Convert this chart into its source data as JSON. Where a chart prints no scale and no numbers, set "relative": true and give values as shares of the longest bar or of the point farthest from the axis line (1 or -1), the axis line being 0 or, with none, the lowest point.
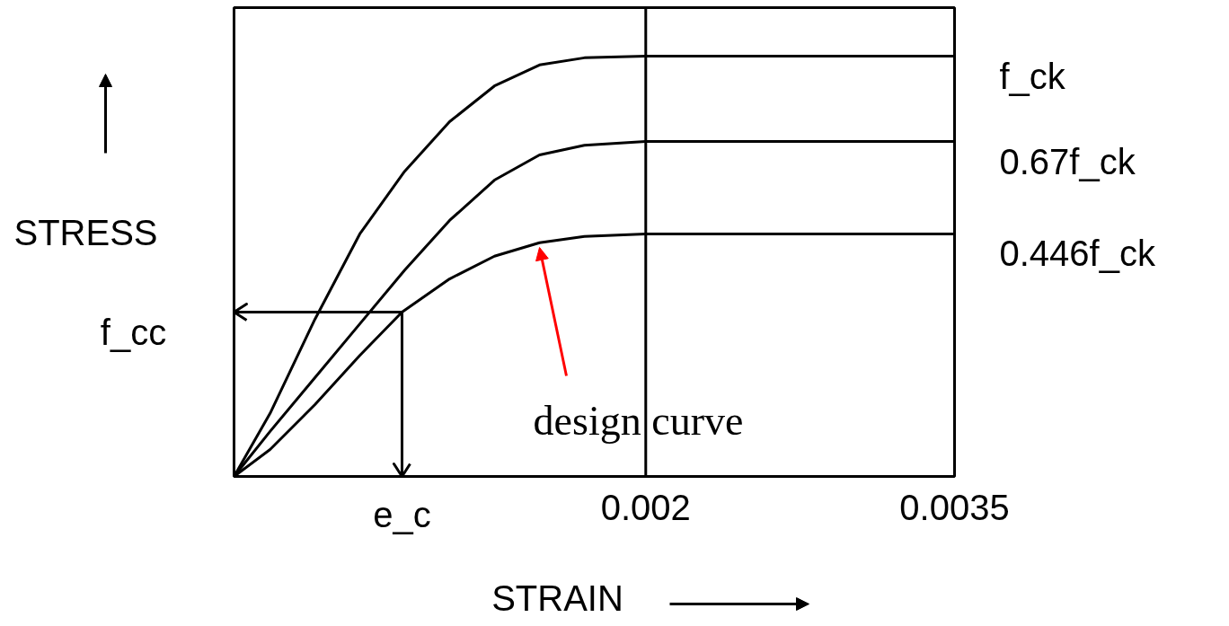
{
  "chart_data": {
    "type": "line",
    "relative": true,
    "xlabel": "STRAIN",
    "ylabel": "STRESS",
    "xlim": [
      0,
      0.0035
    ],
    "xticks": [
      0.002,
      0.0035
    ],
    "tick_labels": "x",
    "grid": false,
    "marker": "none",
    "line_style": "solid",
    "series": [
      {
        "name": "f_ck",
        "color": "#000000",
        "x": [
          0,
          0.000175,
          0.000393,
          0.000611,
          0.000829,
          0.001047,
          0.001265,
          0.001484,
          0.001702,
          0.002,
          0.0035
        ],
        "values": [
          0,
          0.15,
          0.374,
          0.577,
          0.726,
          0.844,
          0.929,
          0.979,
          0.996,
          1,
          1
        ]
      },
      {
        "name": "0.67f_ck",
        "color": "#000000",
        "x": [
          0,
          0.000175,
          0.000393,
          0.000611,
          0.000829,
          0.001047,
          0.001265,
          0.001484,
          0.001702,
          0.002,
          0.0035
        ],
        "values": [
          0,
          0.107,
          0.235,
          0.363,
          0.491,
          0.609,
          0.705,
          0.765,
          0.788,
          0.797,
          0.797
        ]
      },
      {
        "name": "0.446f_ck",
        "color": "#000000",
        "x": [
          0,
          0.000175,
          0.000393,
          0.000611,
          0.000816,
          0.001047,
          0.001265,
          0.001484,
          0.001702,
          0.002,
          0.0035
        ],
        "values": [
          0,
          0.064,
          0.171,
          0.288,
          0.391,
          0.47,
          0.524,
          0.556,
          0.571,
          0.577,
          0.577
        ]
      }
    ],
    "ref_lines": [
      {
        "axis": "x",
        "value": 0.002,
        "color": "#000000"
      },
      {
        "axis": "y",
        "value": 0.391,
        "label": "f_cc",
        "color": "#000000"
      },
      {
        "axis": "x",
        "value": 0.000816,
        "label": "e_c",
        "color": "#000000"
      }
    ],
    "annotations": [
      {
        "text": "design curve",
        "x": 0.001484,
        "y": 0.556
      }
    ]
  }
}
